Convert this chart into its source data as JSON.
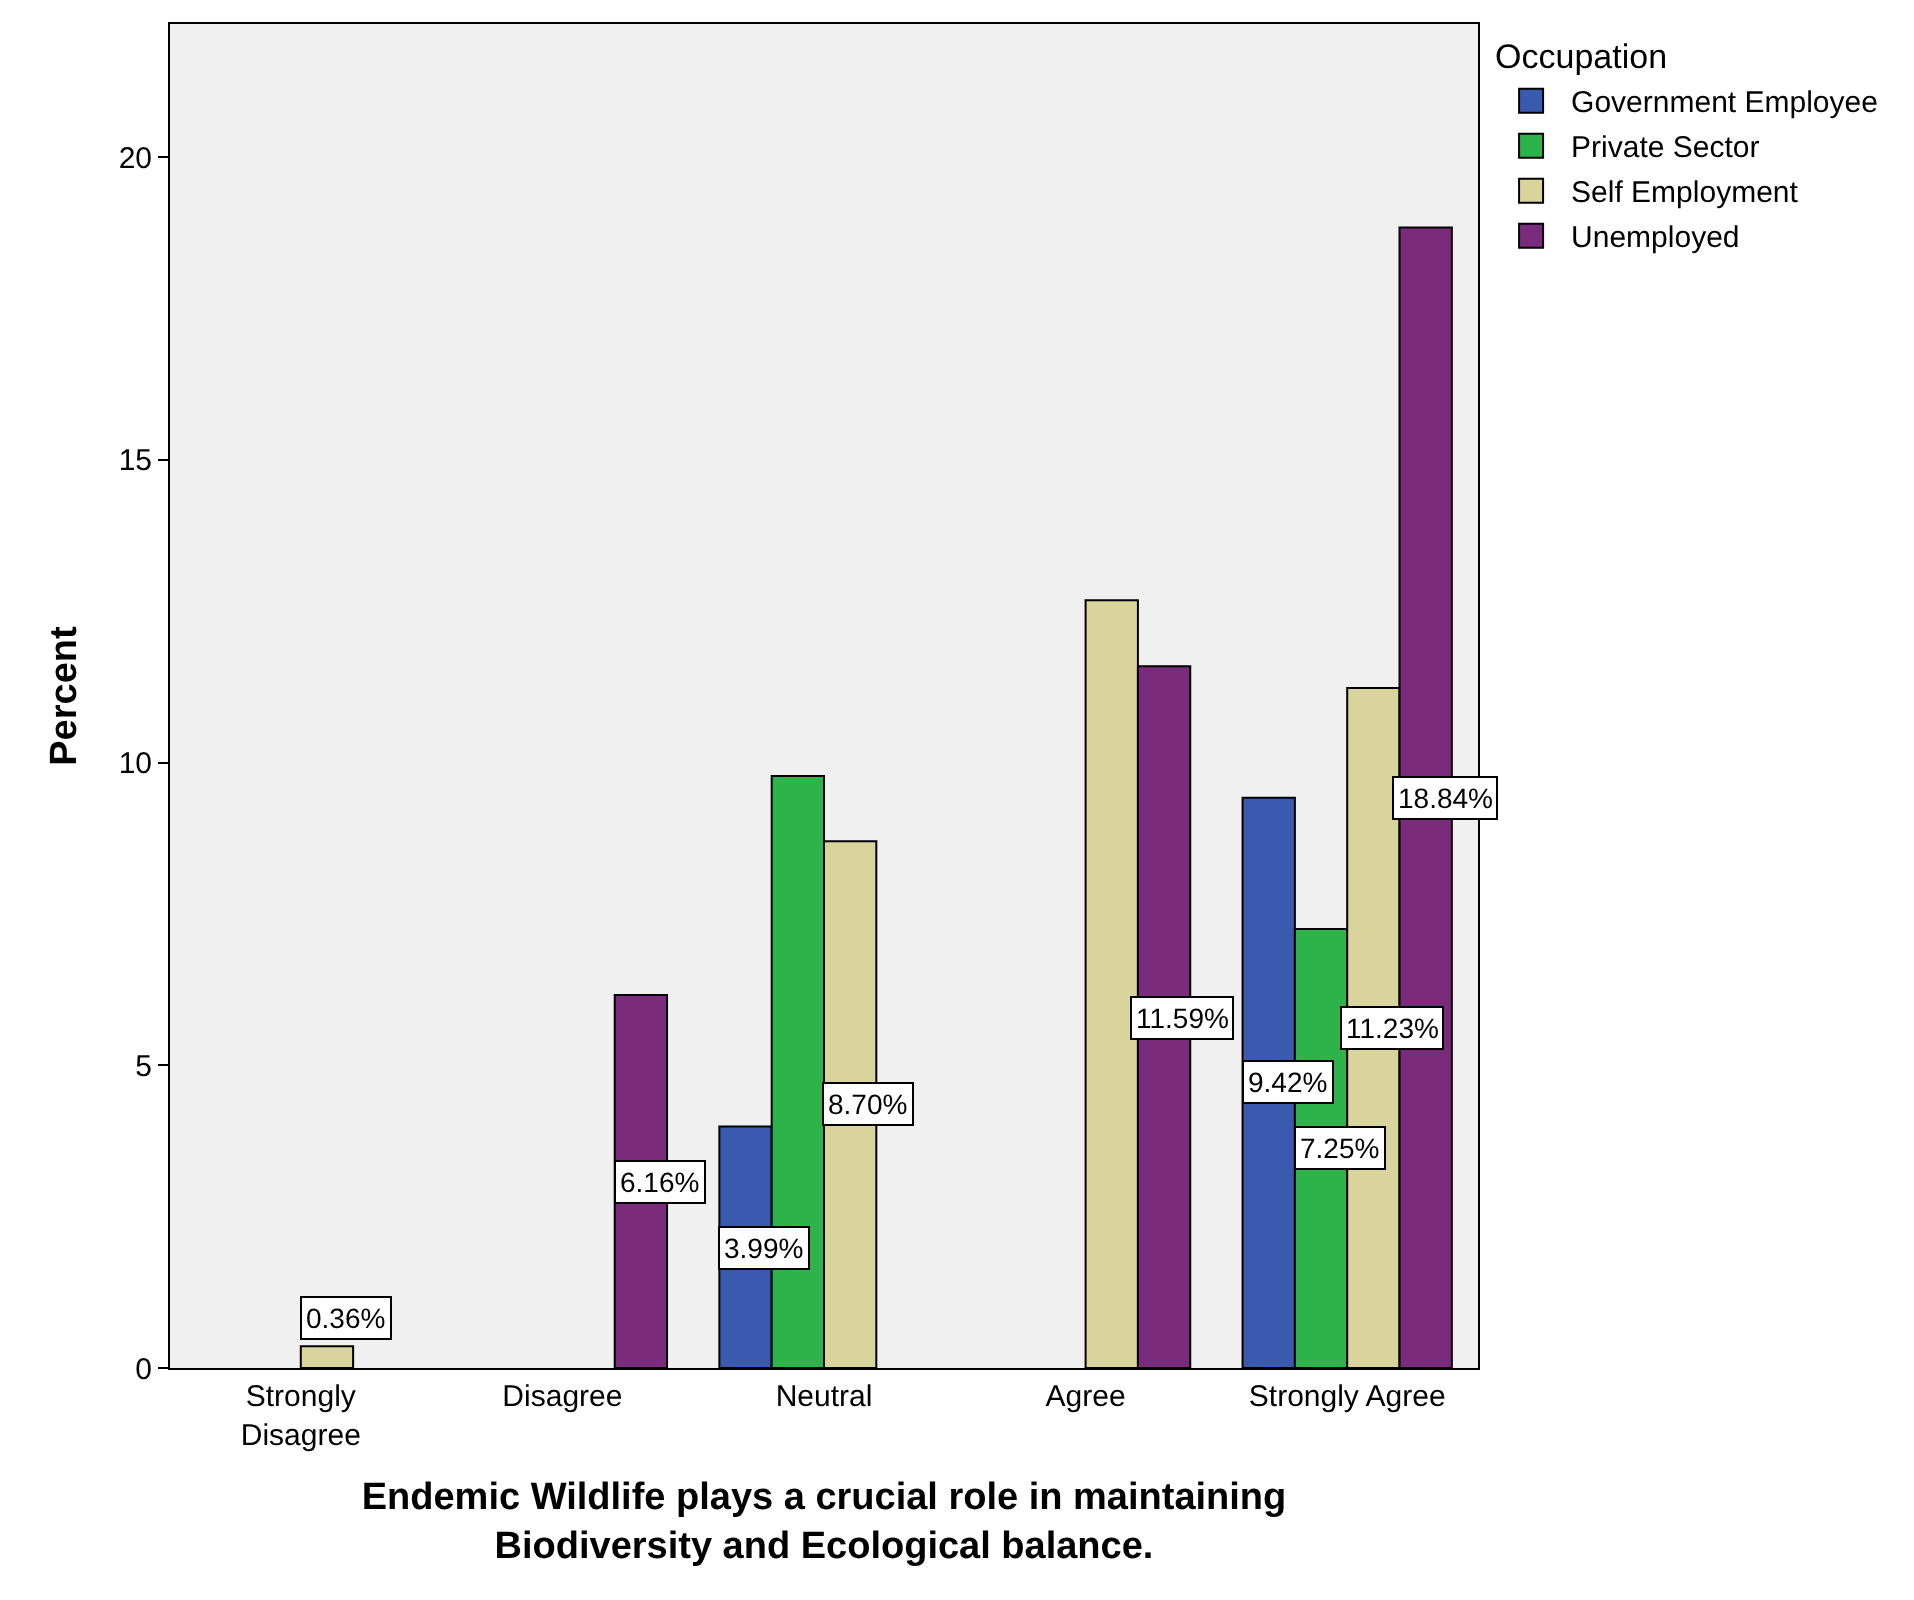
{
  "chart_data": {
    "type": "bar",
    "xlabel": "Endemic Wildlife plays a crucial role in maintaining\nBiodiversity and Ecological balance.",
    "ylabel": "Percent",
    "legend_title": "Occupation",
    "legend": "right",
    "grid": false,
    "categories": [
      "Strongly Disagree",
      "Disagree",
      "Neutral",
      "Agree",
      "Strongly Agree"
    ],
    "ylim": [
      0,
      22.2
    ],
    "yticks": [
      0,
      5,
      10,
      15,
      20
    ],
    "series": [
      {
        "name": "Government Employee",
        "color": "#3a5ab0",
        "values": [
          null,
          null,
          3.99,
          null,
          9.42
        ],
        "value_labels": [
          null,
          null,
          "3.99%",
          null,
          "9.42%"
        ]
      },
      {
        "name": "Private Sector",
        "color": "#2db34a",
        "values": [
          null,
          null,
          9.78,
          null,
          7.25
        ],
        "value_labels": [
          null,
          null,
          null,
          null,
          "7.25%"
        ]
      },
      {
        "name": "Self Employment",
        "color": "#d9d49c",
        "values": [
          0.36,
          null,
          8.7,
          12.68,
          11.23
        ],
        "value_labels": [
          "0.36%",
          null,
          "8.70%",
          null,
          "11.23%"
        ]
      },
      {
        "name": "Unemployed",
        "color": "#7b2b7c",
        "values": [
          null,
          6.16,
          null,
          11.59,
          18.84
        ],
        "value_labels": [
          null,
          "6.16%",
          null,
          "11.59%",
          "18.84%"
        ]
      }
    ]
  }
}
